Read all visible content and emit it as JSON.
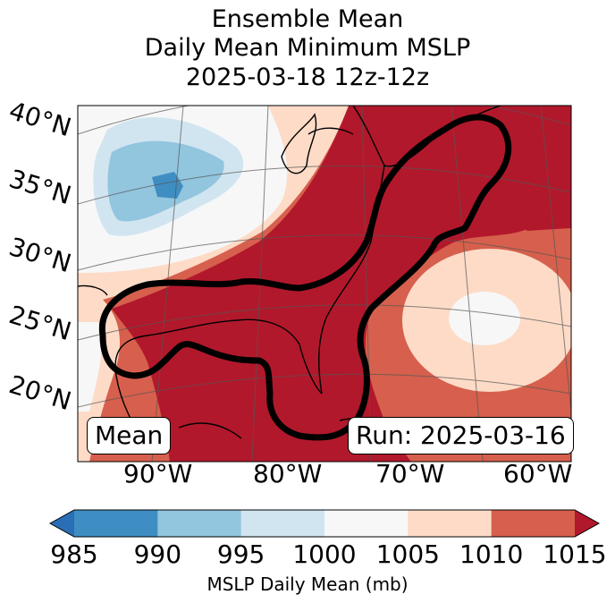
{
  "title": {
    "line1": "Ensemble Mean",
    "line2": "Daily Mean Minimum MSLP",
    "line3": "2025-03-18 12z-12z"
  },
  "map": {
    "latitude_labels": [
      "40°N",
      "35°N",
      "30°N",
      "25°N",
      "20°N"
    ],
    "longitude_labels": [
      "90°W",
      "80°W",
      "70°W",
      "60°W"
    ],
    "left_box": "Mean",
    "right_box": "Run: 2025-03-16",
    "contour_color": "#000000"
  },
  "colorbar": {
    "label": "MSLP Daily Mean (mb)",
    "ticks": [
      "985",
      "990",
      "995",
      "1000",
      "1005",
      "1010",
      "1015"
    ],
    "colors": [
      "#2a6fb5",
      "#3f8ec3",
      "#92c5de",
      "#d1e5f0",
      "#f7f7f7",
      "#fddbc7",
      "#d6604d",
      "#b2182b"
    ]
  }
}
